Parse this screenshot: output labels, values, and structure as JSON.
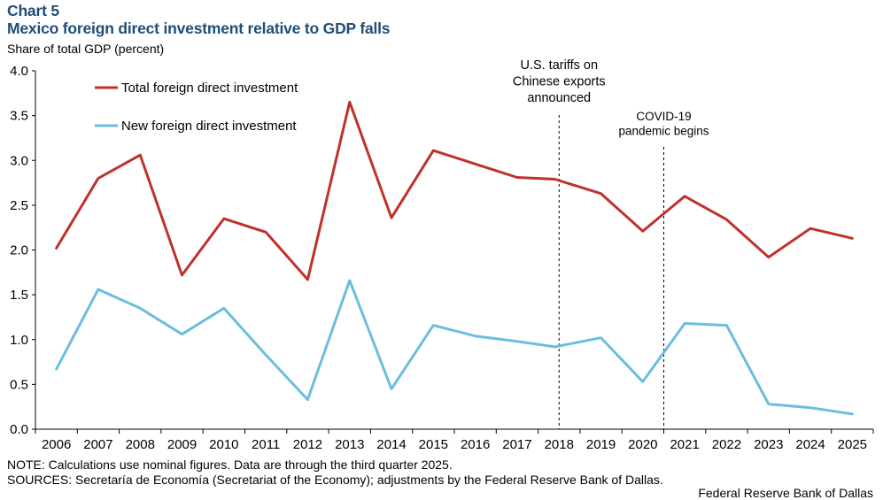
{
  "header": {
    "chart_label": "Chart 5",
    "title": "Mexico foreign direct investment relative to GDP falls",
    "y_unit": "Share of total GDP (percent)"
  },
  "colors": {
    "title": "#1f4e79",
    "total_series": "#c0312b",
    "new_series": "#6cbde0"
  },
  "chart_data": {
    "type": "line",
    "title": "Mexico foreign direct investment relative to GDP falls",
    "ylabel": "Share of total GDP (percent)",
    "xlabel": "",
    "ylim": [
      0,
      4
    ],
    "yticks": [
      "0.0",
      "0.5",
      "1.0",
      "1.5",
      "2.0",
      "2.5",
      "3.0",
      "3.5",
      "4.0"
    ],
    "categories": [
      "2006",
      "2007",
      "2008",
      "2009",
      "2010",
      "2011",
      "2012",
      "2013",
      "2014",
      "2015",
      "2016",
      "2017",
      "2018",
      "2019",
      "2020",
      "2021",
      "2022",
      "2023",
      "2024",
      "2025"
    ],
    "x": [
      2006.0,
      2007.0,
      2008.0,
      2009.0,
      2010.0,
      2011.0,
      2012.0,
      2013.0,
      2014.0,
      2015.0,
      2016.0,
      2017.0,
      2017.9,
      2019.0,
      2020.0,
      2021.0,
      2022.0,
      2023.0,
      2024.0,
      2025.0
    ],
    "series": [
      {
        "name": "Total foreign direct investment",
        "values": [
          2.02,
          2.8,
          3.06,
          1.72,
          2.35,
          2.2,
          1.67,
          3.65,
          2.36,
          3.11,
          2.96,
          2.81,
          2.79,
          2.63,
          2.21,
          2.6,
          2.34,
          1.92,
          2.24,
          2.13
        ]
      },
      {
        "name": "New foreign direct investment",
        "values": [
          0.67,
          1.56,
          1.35,
          1.06,
          1.35,
          0.83,
          0.33,
          1.66,
          0.45,
          1.16,
          1.04,
          0.98,
          0.92,
          1.02,
          0.53,
          1.18,
          1.16,
          0.28,
          0.24,
          0.17
        ]
      }
    ],
    "legend_position": "top-left",
    "grid": false,
    "annotations": [
      {
        "lines": [
          "U.S. tariffs on",
          "Chinese exports",
          "announced"
        ],
        "x": 2018.0
      },
      {
        "lines": [
          "COVID-19",
          "pandemic begins"
        ],
        "x": 2020.5
      }
    ]
  },
  "footer": {
    "note": "NOTE: Calculations use nominal figures. Data are through the third quarter 2025.",
    "sources": "SOURCES: Secretaría de Economía (Secretariat of the Economy); adjustments by the Federal Reserve Bank of Dallas.",
    "credit": "Federal Reserve Bank of Dallas"
  }
}
